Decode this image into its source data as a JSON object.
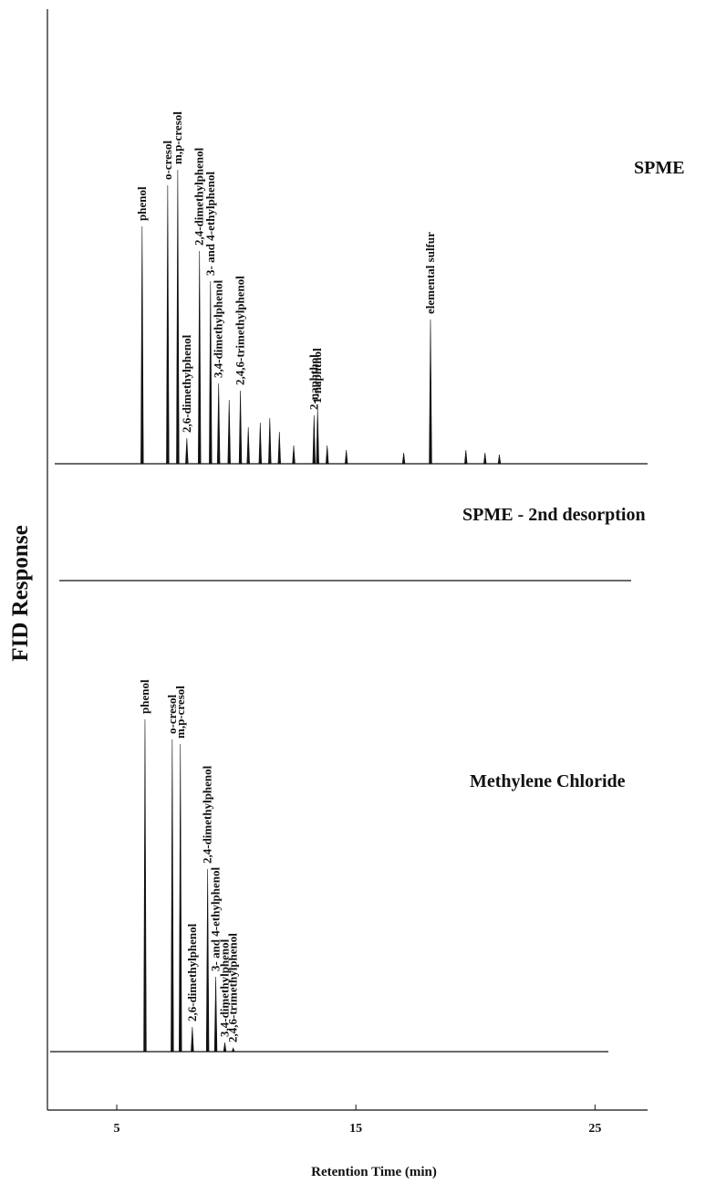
{
  "chart_data": {
    "type": "chromatogram",
    "x_label": "Retention Time (min)",
    "y_label": "FID Response",
    "xlim": [
      2.1,
      27.2
    ],
    "xticks": [
      5,
      15,
      25
    ],
    "ylim": [
      0,
      380
    ],
    "color": "#111111",
    "series": [
      {
        "name": "SPME",
        "x": [
          6.06,
          7.13,
          7.55,
          7.93,
          8.46,
          8.92,
          9.26,
          10.17,
          13.25,
          13.4,
          18.12,
          9.7,
          10.5,
          11.0,
          11.4,
          11.8,
          12.4,
          13.8,
          14.6,
          17.0,
          19.6,
          20.4,
          21.0
        ],
        "values": [
          260,
          305,
          322,
          28,
          233,
          200,
          88,
          80,
          53,
          60,
          158,
          70,
          40,
          45,
          50,
          35,
          20,
          20,
          15,
          12,
          15,
          12,
          10
        ],
        "labels": [
          "phenol",
          "o-cresol",
          "m,p-cresol",
          "2,6-dimethylphenol",
          "2,4-dimethylphenol",
          "3- and 4-ethylphenol",
          "3,4-dimethylphenol",
          "2,4,6-trimethylphenol",
          "2-naphthol",
          "1-naphthol",
          "elemental sulfur",
          null,
          null,
          null,
          null,
          null,
          null,
          null,
          null,
          null,
          null,
          null,
          null
        ]
      },
      {
        "name": "SPME - 2nd desorption",
        "x": [],
        "values": [],
        "labels": []
      },
      {
        "name": "Methylene Chloride",
        "x": [
          6.18,
          7.32,
          7.66,
          8.16,
          8.8,
          9.14,
          9.52,
          9.87
        ],
        "values": [
          364,
          342,
          337,
          27,
          200,
          82,
          10,
          4
        ],
        "labels": [
          "phenol",
          "o-cresol",
          "m,p-cresol",
          "2,6-dimethylphenol",
          "2,4-dimethylphenol",
          "3- and 4-ethylphenol",
          "3,4-dimethylphenol",
          "2,4,6-trimethylphenol"
        ]
      }
    ]
  }
}
